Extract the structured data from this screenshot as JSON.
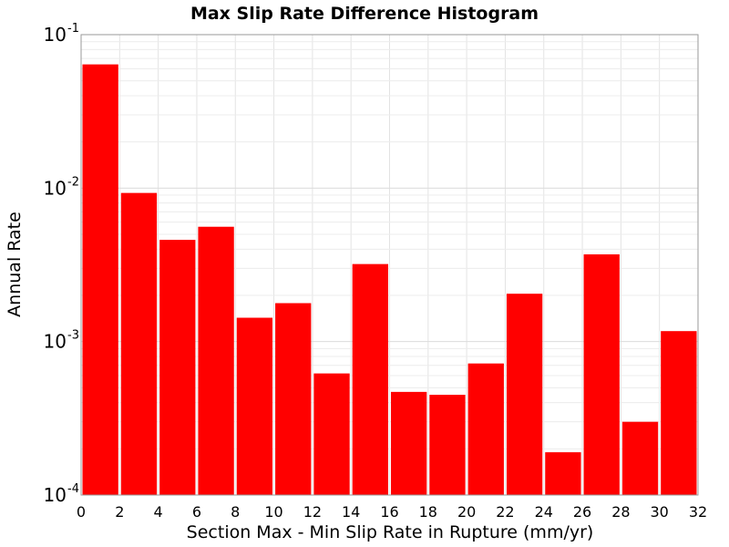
{
  "chart_data": {
    "type": "bar",
    "title": "Max Slip Rate Difference Histogram",
    "xlabel": "Section Max - Min Slip Rate in Rupture (mm/yr)",
    "ylabel": "Annual Rate",
    "y_scale": "log",
    "xlim": [
      0,
      32
    ],
    "ylim": [
      0.0001,
      0.1
    ],
    "grid": true,
    "bar_color": "#ff0000",
    "x_ticks": [
      "0",
      "2",
      "4",
      "6",
      "8",
      "10",
      "12",
      "14",
      "16",
      "18",
      "20",
      "22",
      "24",
      "26",
      "28",
      "30",
      "32"
    ],
    "y_ticks": [
      {
        "base": "10",
        "exp": "-4",
        "value": 0.0001
      },
      {
        "base": "10",
        "exp": "-3",
        "value": 0.001
      },
      {
        "base": "10",
        "exp": "-2",
        "value": 0.01
      },
      {
        "base": "10",
        "exp": "-1",
        "value": 0.1
      }
    ],
    "bars": [
      {
        "x_start": 0,
        "x_end": 2,
        "value": 0.064
      },
      {
        "x_start": 2,
        "x_end": 4,
        "value": 0.0093
      },
      {
        "x_start": 4,
        "x_end": 6,
        "value": 0.0046
      },
      {
        "x_start": 6,
        "x_end": 8,
        "value": 0.0056
      },
      {
        "x_start": 8,
        "x_end": 10,
        "value": 0.00143
      },
      {
        "x_start": 10,
        "x_end": 12,
        "value": 0.00178
      },
      {
        "x_start": 12,
        "x_end": 14,
        "value": 0.00062
      },
      {
        "x_start": 14,
        "x_end": 16,
        "value": 0.0032
      },
      {
        "x_start": 16,
        "x_end": 18,
        "value": 0.00047
      },
      {
        "x_start": 18,
        "x_end": 20,
        "value": 0.00045
      },
      {
        "x_start": 20,
        "x_end": 22,
        "value": 0.00072
      },
      {
        "x_start": 22,
        "x_end": 24,
        "value": 0.00205
      },
      {
        "x_start": 24,
        "x_end": 26,
        "value": 0.00019
      },
      {
        "x_start": 26,
        "x_end": 28,
        "value": 0.0037
      },
      {
        "x_start": 28,
        "x_end": 30,
        "value": 0.0003
      },
      {
        "x_start": 30,
        "x_end": 32,
        "value": 0.00117
      }
    ]
  }
}
